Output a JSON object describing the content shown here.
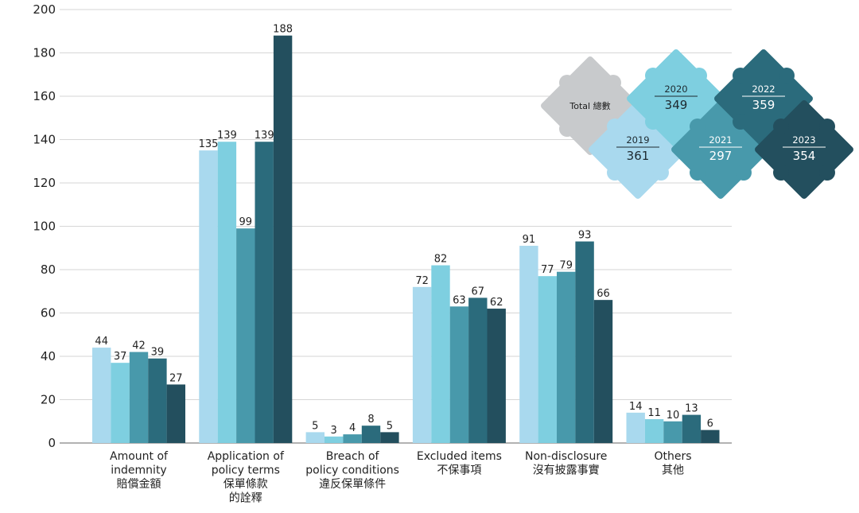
{
  "chart_data": {
    "type": "bar",
    "ylim": [
      0,
      200
    ],
    "yticks": [
      0,
      20,
      40,
      60,
      80,
      100,
      120,
      140,
      160,
      180,
      200
    ],
    "categories": [
      [
        "Amount of",
        "indemnity",
        "賠償金額"
      ],
      [
        "Application of",
        "policy terms",
        "保單條款",
        "的詮釋"
      ],
      [
        "Breach of",
        "policy conditions",
        "違反保單條件"
      ],
      [
        "Excluded items",
        "不保事項"
      ],
      [
        "Non-disclosure",
        "沒有披露事實"
      ],
      [
        "Others",
        "其他"
      ]
    ],
    "series": [
      {
        "name": "2019",
        "color": "#a9d9ee",
        "values": [
          44,
          135,
          5,
          72,
          91,
          14
        ]
      },
      {
        "name": "2020",
        "color": "#7ecfe0",
        "values": [
          37,
          139,
          3,
          82,
          77,
          11
        ]
      },
      {
        "name": "2021",
        "color": "#4899ab",
        "values": [
          42,
          99,
          4,
          63,
          79,
          10
        ]
      },
      {
        "name": "2022",
        "color": "#2b6b7c",
        "values": [
          39,
          139,
          8,
          67,
          93,
          13
        ]
      },
      {
        "name": "2023",
        "color": "#234f5e",
        "values": [
          27,
          188,
          5,
          62,
          66,
          6
        ]
      }
    ],
    "legend": {
      "title": "Total 總數",
      "title_color": "#c8cacc",
      "entries": [
        {
          "year": "2019",
          "total": "361",
          "color": "#a9d9ee",
          "text_color": "#1e2a30"
        },
        {
          "year": "2020",
          "total": "349",
          "color": "#7ecfe0",
          "text_color": "#1e2a30"
        },
        {
          "year": "2021",
          "total": "297",
          "color": "#4899ab",
          "text_color": "#ffffff"
        },
        {
          "year": "2022",
          "total": "359",
          "color": "#2b6b7c",
          "text_color": "#ffffff"
        },
        {
          "year": "2023",
          "total": "354",
          "color": "#234f5e",
          "text_color": "#ffffff"
        }
      ]
    }
  }
}
